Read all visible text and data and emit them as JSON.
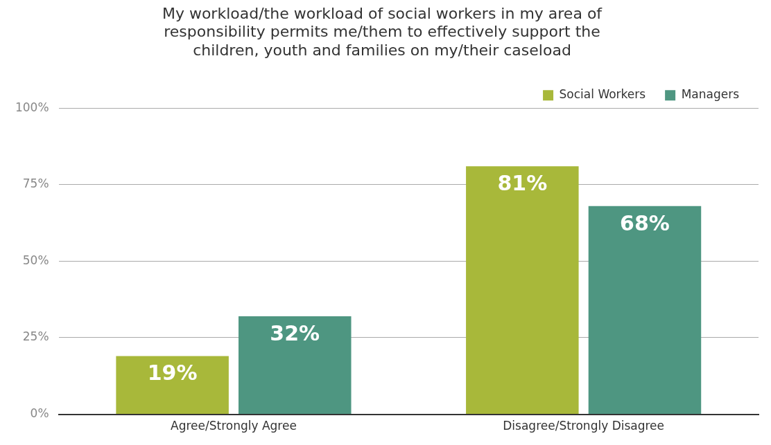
{
  "chart_data": {
    "type": "bar",
    "title": "My workload/the workload of social workers in my area of responsibility permits me/them to effectively support the children, youth and families on my/their caseload",
    "categories": [
      "Agree/Strongly Agree",
      "Disagree/Strongly Disagree"
    ],
    "series": [
      {
        "name": "Social Workers",
        "color": "#a8b83a",
        "values": [
          19,
          81
        ],
        "value_labels": [
          "19%",
          "81%"
        ]
      },
      {
        "name": "Managers",
        "color": "#4e9681",
        "values": [
          32,
          68
        ],
        "value_labels": [
          "32%",
          "68%"
        ]
      }
    ],
    "ylim": [
      0,
      100
    ],
    "yticks": [
      {
        "value": 0,
        "label": "0%"
      },
      {
        "value": 25,
        "label": "25%"
      },
      {
        "value": 50,
        "label": "50%"
      },
      {
        "value": 75,
        "label": "75%"
      },
      {
        "value": 100,
        "label": "100%"
      }
    ],
    "grid": "y",
    "legend": "top right"
  }
}
